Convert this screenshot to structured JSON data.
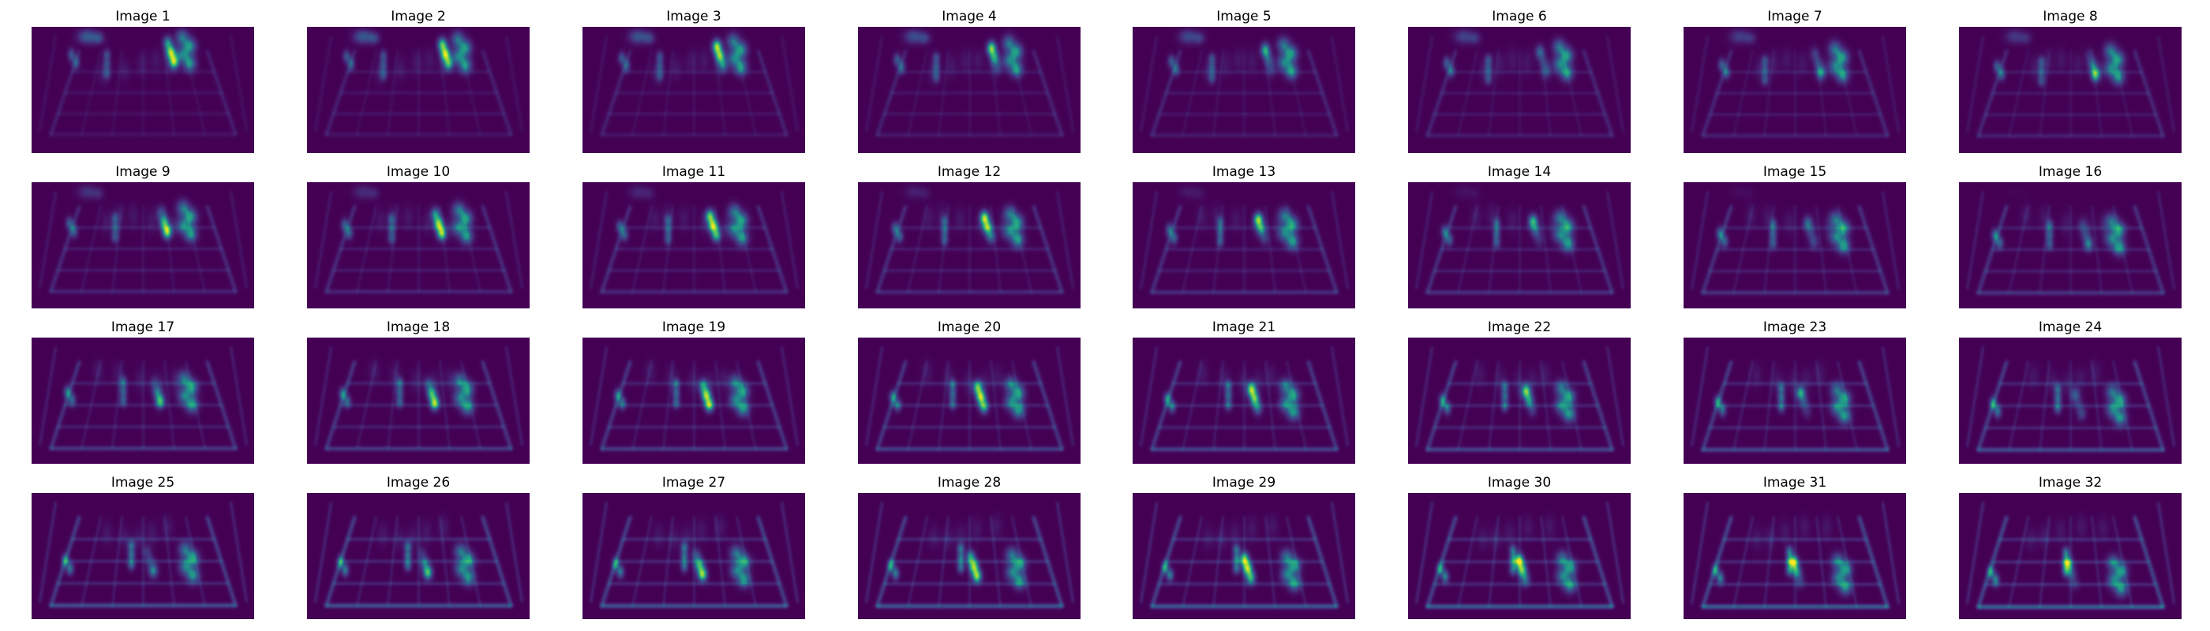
{
  "figure": {
    "colormap": "viridis",
    "background_color": "#440154",
    "tiles": [
      {
        "title": "Image 1"
      },
      {
        "title": "Image 2"
      },
      {
        "title": "Image 3"
      },
      {
        "title": "Image 4"
      },
      {
        "title": "Image 5"
      },
      {
        "title": "Image 6"
      },
      {
        "title": "Image 7"
      },
      {
        "title": "Image 8"
      },
      {
        "title": "Image 9"
      },
      {
        "title": "Image 10"
      },
      {
        "title": "Image 11"
      },
      {
        "title": "Image 12"
      },
      {
        "title": "Image 13"
      },
      {
        "title": "Image 14"
      },
      {
        "title": "Image 15"
      },
      {
        "title": "Image 16"
      },
      {
        "title": "Image 17"
      },
      {
        "title": "Image 18"
      },
      {
        "title": "Image 19"
      },
      {
        "title": "Image 20"
      },
      {
        "title": "Image 21"
      },
      {
        "title": "Image 22"
      },
      {
        "title": "Image 23"
      },
      {
        "title": "Image 24"
      },
      {
        "title": "Image 25"
      },
      {
        "title": "Image 26"
      },
      {
        "title": "Image 27"
      },
      {
        "title": "Image 28"
      },
      {
        "title": "Image 29"
      },
      {
        "title": "Image 30"
      },
      {
        "title": "Image 31"
      },
      {
        "title": "Image 32"
      }
    ]
  }
}
